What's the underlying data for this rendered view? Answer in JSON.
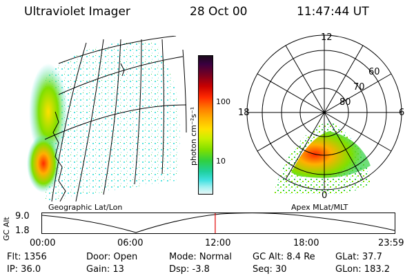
{
  "header": {
    "instrument": "Ultraviolet Imager",
    "date": "28 Oct 00",
    "time": "11:47:44 UT"
  },
  "colorbar": {
    "unit_label": "photon cm⁻²s⁻¹",
    "tick_labels": [
      "100",
      "10"
    ],
    "scale": "log",
    "colors": [
      "#1a0a1a",
      "#3a0040",
      "#7a0020",
      "#c80000",
      "#ff2a00",
      "#ff7a00",
      "#ffb000",
      "#ffe000",
      "#c8f000",
      "#80e000",
      "#30d040",
      "#20d0a0",
      "#40e0e0",
      "#a0f0f0",
      "#e8f8f8"
    ]
  },
  "geo_panel": {
    "caption": "Geographic Lat/Lon"
  },
  "polar_panel": {
    "caption": "Apex MLat/MLT",
    "mlt_labels": {
      "top": "12",
      "left": "18",
      "right": "6",
      "bottom": "0"
    },
    "lat_labels": [
      "60",
      "70",
      "80"
    ]
  },
  "timeline": {
    "ylabel": "GC Alt",
    "y_top": "9.0",
    "y_bottom": "1.8",
    "time_ticks": [
      "00:00",
      "06:00",
      "12:00",
      "18:00",
      "23:59"
    ],
    "current_time_fraction": 0.491,
    "marker_color": "#e00000"
  },
  "status": {
    "flt": "Flt:  1356",
    "ip": "IP:  36.0",
    "door": "Door:  Open",
    "gain": "Gain:  13",
    "mode": "Mode:  Normal",
    "dsp": "Dsp:     -3.8",
    "gcalt": "GC Alt:  8.4 Re",
    "seq": "Seq:  30",
    "glat": "GLat:   37.7",
    "glon": "GLon:  183.2"
  }
}
